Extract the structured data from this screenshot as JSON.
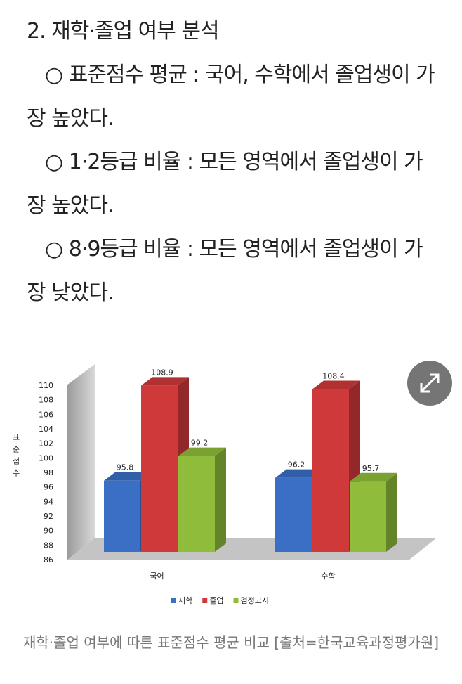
{
  "article": {
    "heading": "2. 재학·졸업 여부 분석",
    "items": [
      "○ 표준점수 평균 : 국어, 수학에서 졸업생이 가장 높았다.",
      "○ 1·2등급 비율 : 모든 영역에서 졸업생이 가장 높았다.",
      "○ 8·9등급 비율 : 모든 영역에서 졸업생이 가장 낮았다."
    ]
  },
  "chart_data": {
    "type": "bar",
    "ylabel": "표준점수",
    "categories": [
      "국어",
      "수학"
    ],
    "series": [
      {
        "name": "재학",
        "color": "#3b6fc6",
        "values": [
          95.8,
          96.2
        ]
      },
      {
        "name": "졸업",
        "color": "#d0393a",
        "values": [
          108.9,
          108.4
        ]
      },
      {
        "name": "검정고시",
        "color": "#8fbd3b",
        "values": [
          99.2,
          95.7
        ]
      }
    ],
    "ylim": [
      86,
      110
    ],
    "yticks": [
      86,
      88,
      90,
      92,
      94,
      96,
      98,
      100,
      102,
      104,
      106,
      108,
      110
    ]
  },
  "caption": "재학·졸업 여부에 따른 표준점수 평균 비교 [출처=한국교육과정평가원]"
}
